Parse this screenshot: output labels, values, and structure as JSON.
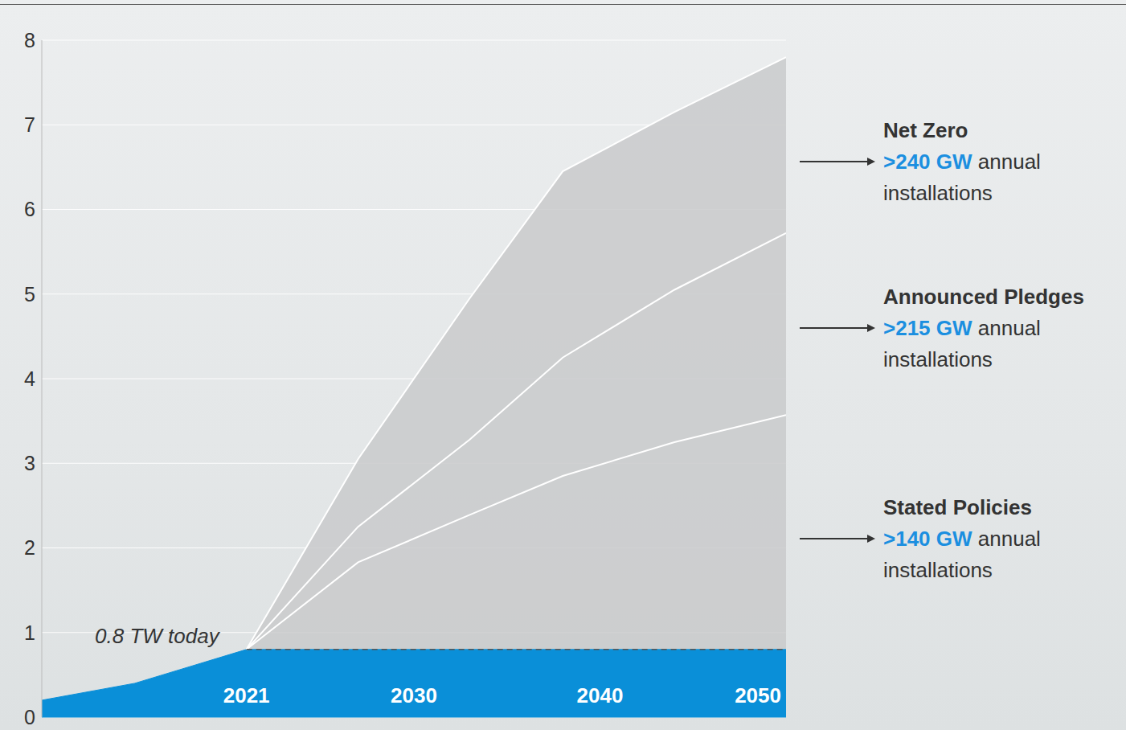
{
  "chart_data": {
    "type": "line",
    "xlim": [
      2010,
      2050
    ],
    "xticks": [
      2021,
      2030,
      2040,
      2050
    ],
    "ylim": [
      0,
      8
    ],
    "yticks": [
      0,
      1,
      2,
      3,
      4,
      5,
      6,
      7,
      8
    ],
    "grid": true,
    "history": {
      "x": [
        2010,
        2015,
        2021,
        2050
      ],
      "values": [
        0.2,
        0.4,
        0.8,
        0.8
      ],
      "color": "#0a8fd8"
    },
    "reference": {
      "y": 0.8,
      "text": "0.8 TW today",
      "line_style": "dashed"
    },
    "series": [
      {
        "name": "Net Zero",
        "type": "area",
        "color": "#ffffff",
        "x": [
          2021,
          2027,
          2033,
          2038,
          2044,
          2050
        ],
        "values": [
          0.8,
          3.05,
          4.95,
          6.45,
          7.15,
          7.8
        ],
        "label": ">240 GW",
        "note": "annual installations"
      },
      {
        "name": "Announced Pledges",
        "type": "line",
        "color": "#ffffff",
        "x": [
          2021,
          2027,
          2033,
          2038,
          2044,
          2050
        ],
        "values": [
          0.8,
          2.25,
          3.28,
          4.25,
          5.05,
          5.72
        ],
        "label": ">215 GW",
        "note": "annual installations"
      },
      {
        "name": "Stated Policies",
        "type": "line",
        "color": "#ffffff",
        "x": [
          2021,
          2027,
          2033,
          2038,
          2044,
          2050
        ],
        "values": [
          0.8,
          1.83,
          2.39,
          2.85,
          3.25,
          3.57
        ],
        "label": ">140 GW",
        "note": "annual installations"
      }
    ]
  }
}
